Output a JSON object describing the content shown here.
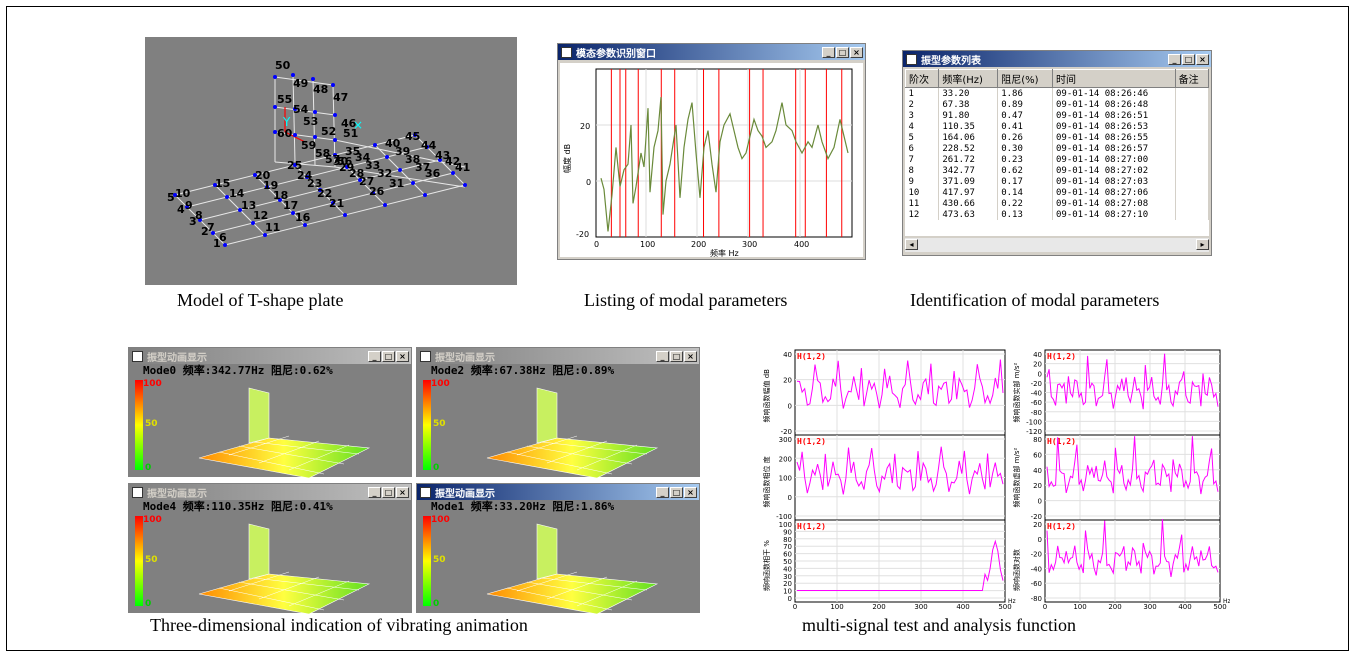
{
  "captions": {
    "model": "Model of T-shape plate",
    "listing": "Listing of modal parameters",
    "identification": "Identification of modal parameters",
    "animation": "Three-dimensional indication of vibrating animation",
    "multisignal": "multi-signal test and analysis function"
  },
  "model_nodes": [
    "50",
    "49",
    "48",
    "47",
    "46",
    "55",
    "54",
    "53",
    "52",
    "51",
    "60",
    "59",
    "58",
    "57",
    "56",
    "45",
    "44",
    "43",
    "42",
    "41",
    "40",
    "39",
    "38",
    "37",
    "36",
    "35",
    "34",
    "33",
    "32",
    "31",
    "30",
    "29",
    "28",
    "27",
    "26",
    "25",
    "24",
    "23",
    "22",
    "21",
    "20",
    "19",
    "18",
    "17",
    "16",
    "15",
    "14",
    "13",
    "12",
    "11",
    "10",
    "9",
    "8",
    "7",
    "6",
    "5",
    "4",
    "3",
    "2",
    "1"
  ],
  "fit_window": {
    "title": "模态参数识别窗口",
    "ylabel": "幅度 dB",
    "xlabel": "频率 Hz",
    "yticks": [
      "20",
      "0",
      "-20"
    ],
    "xticks": [
      "0",
      "100",
      "200",
      "300",
      "400"
    ]
  },
  "param_window": {
    "title": "振型参数列表",
    "columns": [
      "阶次",
      "频率(Hz)",
      "阻尼(%)",
      "时间",
      "备注"
    ],
    "rows": [
      [
        "1",
        "33.20",
        "1.86",
        "09-01-14 08:26:46"
      ],
      [
        "2",
        "67.38",
        "0.89",
        "09-01-14 08:26:48"
      ],
      [
        "3",
        "91.80",
        "0.47",
        "09-01-14 08:26:51"
      ],
      [
        "4",
        "110.35",
        "0.41",
        "09-01-14 08:26:53"
      ],
      [
        "5",
        "164.06",
        "0.26",
        "09-01-14 08:26:55"
      ],
      [
        "6",
        "228.52",
        "0.30",
        "09-01-14 08:26:57"
      ],
      [
        "7",
        "261.72",
        "0.23",
        "09-01-14 08:27:00"
      ],
      [
        "8",
        "342.77",
        "0.62",
        "09-01-14 08:27:02"
      ],
      [
        "9",
        "371.09",
        "0.17",
        "09-01-14 08:27:03"
      ],
      [
        "10",
        "417.97",
        "0.14",
        "09-01-14 08:27:06"
      ],
      [
        "11",
        "430.66",
        "0.22",
        "09-01-14 08:27:08"
      ],
      [
        "12",
        "473.63",
        "0.13",
        "09-01-14 08:27:10"
      ]
    ]
  },
  "anim_windows": [
    {
      "title": "振型动画显示",
      "info": "Mode0 频率:342.77Hz 阻尼:0.62%"
    },
    {
      "title": "振型动画显示",
      "info": "Mode2 频率:67.38Hz 阻尼:0.89%"
    },
    {
      "title": "振型动画显示",
      "info": "Mode4 频率:110.35Hz 阻尼:0.41%"
    },
    {
      "title": "振型动画显示",
      "info": "Mode1 频率:33.20Hz 阻尼:1.86%"
    }
  ],
  "scale_labels": [
    "100",
    "50",
    "0"
  ],
  "signal_panels": [
    {
      "tag": "H(1,2)",
      "ylabel": "频响函数幅值 dB",
      "yticks": [
        "40",
        "20",
        "0",
        "-20"
      ]
    },
    {
      "tag": "H(1,2)",
      "ylabel": "频响函数相位 度",
      "yticks": [
        "300",
        "200",
        "100",
        "0",
        "-100"
      ]
    },
    {
      "tag": "H(1,2)",
      "ylabel": "频响函数相干 %",
      "yticks": [
        "100",
        "90",
        "80",
        "70",
        "60",
        "50",
        "40",
        "30",
        "20",
        "10",
        "0"
      ]
    },
    {
      "tag": "H(1,2)",
      "ylabel": "频响函数实部 m/s²",
      "yticks": [
        "40",
        "20",
        "0",
        "-20",
        "-40",
        "-60",
        "-80",
        "-100",
        "-120"
      ]
    },
    {
      "tag": "H(1,2)",
      "ylabel": "频响函数虚部 m/s²",
      "yticks": [
        "80",
        "60",
        "40",
        "20",
        "0",
        "-20"
      ]
    },
    {
      "tag": "H(1,2)",
      "ylabel": "频响函数对数",
      "yticks": [
        "20",
        "0",
        "-20",
        "-40",
        "-60",
        "-80"
      ]
    }
  ],
  "signal_xticks": [
    "0",
    "100",
    "200",
    "300",
    "400",
    "500"
  ],
  "signal_xunit": "Hz",
  "window_buttons": [
    "_",
    "□",
    "×"
  ],
  "colors": {
    "accent": "#0a246a",
    "curve": "#ff00ff",
    "fit": "#6a8a3a",
    "marker": "#ff0000"
  }
}
